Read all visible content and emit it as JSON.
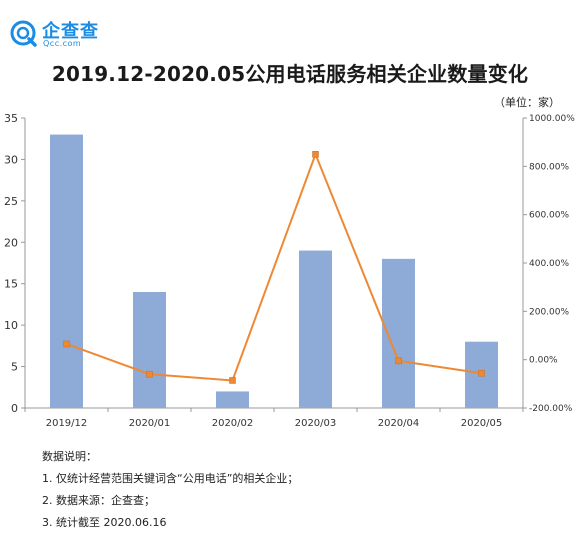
{
  "logo": {
    "name": "企查查",
    "sub": "Qcc.com"
  },
  "title": "2019.12-2020.05公用电话服务相关企业数量变化",
  "unit_note": "（单位：家）",
  "chart_data": {
    "type": "bar",
    "categories": [
      "2019/12",
      "2020/01",
      "2020/02",
      "2020/03",
      "2020/04",
      "2020/05"
    ],
    "series": [
      {
        "type": "bar",
        "values": [
          33,
          14,
          2,
          19,
          18,
          8
        ],
        "color": "#8eaad6"
      },
      {
        "type": "line",
        "axis": "right",
        "values": [
          65,
          -60,
          -86,
          850,
          -5,
          -56
        ],
        "color": "#ee8833"
      }
    ],
    "ylim_left": [
      0,
      35
    ],
    "yticks_left": [
      "0",
      "5",
      "10",
      "15",
      "20",
      "25",
      "30",
      "35"
    ],
    "ylim_right": [
      -200,
      1000
    ],
    "yticks_right": [
      "-200.00%",
      "0.00%",
      "200.00%",
      "400.00%",
      "600.00%",
      "800.00%",
      "1000.00%"
    ],
    "grid": false
  },
  "notes": {
    "heading": "数据说明：",
    "items": [
      "1. 仅统计经营范围关键词含“公用电话”的相关企业；",
      "2. 数据来源：企查查；",
      "3. 统计截至 2020.06.16"
    ]
  }
}
